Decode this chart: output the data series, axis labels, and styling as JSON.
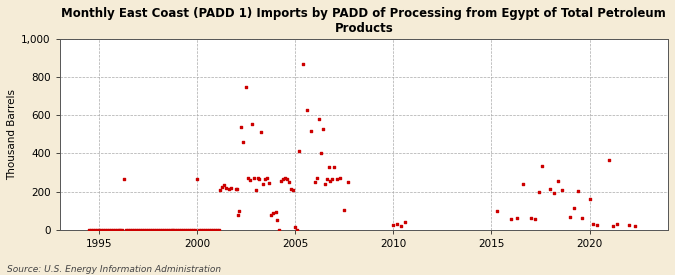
{
  "title": "Monthly East Coast (PADD 1) Imports by PADD of Processing from Egypt of Total Petroleum\nProducts",
  "ylabel": "Thousand Barrels",
  "source": "Source: U.S. Energy Information Administration",
  "background_color": "#f5ecd7",
  "plot_bg_color": "#ffffff",
  "dot_color": "#cc0000",
  "dot_size": 4,
  "xlim": [
    1993.0,
    2024.0
  ],
  "ylim": [
    0,
    1000
  ],
  "yticks": [
    0,
    200,
    400,
    600,
    800,
    1000
  ],
  "xticks": [
    1995,
    2000,
    2005,
    2010,
    2015,
    2020
  ],
  "data_points": [
    [
      1994.5,
      0
    ],
    [
      1994.6,
      0
    ],
    [
      1994.7,
      0
    ],
    [
      1994.8,
      0
    ],
    [
      1994.9,
      0
    ],
    [
      1995.0,
      0
    ],
    [
      1995.1,
      0
    ],
    [
      1995.2,
      0
    ],
    [
      1995.3,
      0
    ],
    [
      1995.4,
      0
    ],
    [
      1995.5,
      0
    ],
    [
      1995.6,
      0
    ],
    [
      1995.7,
      0
    ],
    [
      1995.8,
      0
    ],
    [
      1995.9,
      0
    ],
    [
      1996.0,
      0
    ],
    [
      1996.1,
      0
    ],
    [
      1996.2,
      0
    ],
    [
      1996.3,
      265
    ],
    [
      1996.4,
      0
    ],
    [
      1996.5,
      0
    ],
    [
      1996.6,
      0
    ],
    [
      1996.7,
      0
    ],
    [
      1996.8,
      0
    ],
    [
      1996.9,
      0
    ],
    [
      1997.0,
      0
    ],
    [
      1997.1,
      0
    ],
    [
      1997.2,
      0
    ],
    [
      1997.3,
      0
    ],
    [
      1997.4,
      0
    ],
    [
      1997.5,
      0
    ],
    [
      1997.6,
      0
    ],
    [
      1997.7,
      0
    ],
    [
      1997.8,
      0
    ],
    [
      1997.9,
      0
    ],
    [
      1998.0,
      0
    ],
    [
      1998.1,
      0
    ],
    [
      1998.2,
      0
    ],
    [
      1998.3,
      0
    ],
    [
      1998.4,
      0
    ],
    [
      1998.5,
      0
    ],
    [
      1998.6,
      0
    ],
    [
      1998.7,
      0
    ],
    [
      1998.8,
      0
    ],
    [
      1998.9,
      0
    ],
    [
      1999.0,
      0
    ],
    [
      1999.1,
      0
    ],
    [
      1999.2,
      0
    ],
    [
      1999.3,
      0
    ],
    [
      1999.4,
      0
    ],
    [
      1999.5,
      0
    ],
    [
      1999.6,
      0
    ],
    [
      1999.7,
      0
    ],
    [
      1999.8,
      0
    ],
    [
      1999.9,
      0
    ],
    [
      2000.0,
      265
    ],
    [
      2000.1,
      0
    ],
    [
      2000.2,
      0
    ],
    [
      2000.3,
      0
    ],
    [
      2000.4,
      0
    ],
    [
      2000.5,
      0
    ],
    [
      2000.6,
      0
    ],
    [
      2000.7,
      0
    ],
    [
      2000.8,
      0
    ],
    [
      2000.9,
      0
    ],
    [
      2001.0,
      0
    ],
    [
      2001.1,
      0
    ],
    [
      2001.15,
      210
    ],
    [
      2001.25,
      225
    ],
    [
      2001.35,
      235
    ],
    [
      2001.5,
      220
    ],
    [
      2001.65,
      215
    ],
    [
      2001.75,
      220
    ],
    [
      2002.0,
      215
    ],
    [
      2002.05,
      215
    ],
    [
      2002.1,
      75
    ],
    [
      2002.15,
      100
    ],
    [
      2002.25,
      540
    ],
    [
      2002.35,
      460
    ],
    [
      2002.5,
      750
    ],
    [
      2002.6,
      270
    ],
    [
      2002.7,
      260
    ],
    [
      2002.8,
      555
    ],
    [
      2002.9,
      270
    ],
    [
      2003.0,
      210
    ],
    [
      2003.1,
      270
    ],
    [
      2003.15,
      265
    ],
    [
      2003.25,
      510
    ],
    [
      2003.35,
      240
    ],
    [
      2003.45,
      265
    ],
    [
      2003.55,
      270
    ],
    [
      2003.65,
      245
    ],
    [
      2003.75,
      80
    ],
    [
      2003.85,
      90
    ],
    [
      2004.0,
      95
    ],
    [
      2004.1,
      50
    ],
    [
      2004.2,
      0
    ],
    [
      2004.3,
      255
    ],
    [
      2004.4,
      265
    ],
    [
      2004.5,
      270
    ],
    [
      2004.6,
      265
    ],
    [
      2004.7,
      250
    ],
    [
      2004.8,
      215
    ],
    [
      2004.9,
      210
    ],
    [
      2005.0,
      15
    ],
    [
      2005.1,
      0
    ],
    [
      2005.2,
      415
    ],
    [
      2005.42,
      870
    ],
    [
      2005.6,
      630
    ],
    [
      2005.8,
      520
    ],
    [
      2006.0,
      250
    ],
    [
      2006.1,
      270
    ],
    [
      2006.2,
      580
    ],
    [
      2006.3,
      400
    ],
    [
      2006.4,
      530
    ],
    [
      2006.5,
      240
    ],
    [
      2006.6,
      265
    ],
    [
      2006.7,
      330
    ],
    [
      2006.8,
      255
    ],
    [
      2006.9,
      265
    ],
    [
      2007.0,
      330
    ],
    [
      2007.15,
      265
    ],
    [
      2007.3,
      270
    ],
    [
      2007.5,
      105
    ],
    [
      2007.7,
      250
    ],
    [
      2010.0,
      25
    ],
    [
      2010.2,
      30
    ],
    [
      2010.4,
      20
    ],
    [
      2010.6,
      40
    ],
    [
      2015.3,
      100
    ],
    [
      2016.0,
      55
    ],
    [
      2016.3,
      60
    ],
    [
      2016.6,
      240
    ],
    [
      2017.0,
      60
    ],
    [
      2017.2,
      55
    ],
    [
      2017.4,
      200
    ],
    [
      2017.6,
      335
    ],
    [
      2018.0,
      215
    ],
    [
      2018.2,
      195
    ],
    [
      2018.4,
      255
    ],
    [
      2018.6,
      210
    ],
    [
      2019.0,
      65
    ],
    [
      2019.2,
      115
    ],
    [
      2019.4,
      205
    ],
    [
      2019.6,
      60
    ],
    [
      2020.0,
      160
    ],
    [
      2020.2,
      30
    ],
    [
      2020.4,
      25
    ],
    [
      2021.0,
      365
    ],
    [
      2021.2,
      20
    ],
    [
      2021.4,
      30
    ],
    [
      2022.0,
      25
    ],
    [
      2022.3,
      20
    ]
  ]
}
